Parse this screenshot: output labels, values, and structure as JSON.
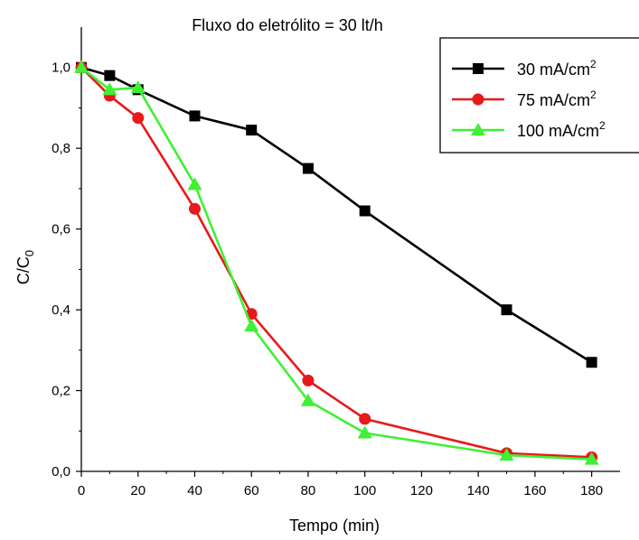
{
  "chart_data": {
    "type": "line",
    "title": "Fluxo do eletrólito = 30 lt/h",
    "xlabel": "Tempo (min)",
    "ylabel": {
      "main": "C/C",
      "sub": "0"
    },
    "xlim": [
      0,
      190
    ],
    "ylim": [
      0,
      1.1
    ],
    "xticks": [
      "0",
      "20",
      "40",
      "60",
      "80",
      "100",
      "120",
      "140",
      "160",
      "180"
    ],
    "xtick_values": [
      0,
      20,
      40,
      60,
      80,
      100,
      120,
      140,
      160,
      180
    ],
    "yticks": [
      "0,0",
      "0,2",
      "0,4",
      "0,6",
      "0,8",
      "1,0"
    ],
    "ytick_values": [
      0,
      0.2,
      0.4,
      0.6,
      0.8,
      1.0
    ],
    "grid": false,
    "legend_position": "top-right",
    "series": [
      {
        "name": "30 mA/cm",
        "name_sup": "2",
        "color": "#000000",
        "marker": "square",
        "x": [
          0,
          10,
          20,
          40,
          60,
          80,
          100,
          150,
          180
        ],
        "y": [
          1.0,
          0.98,
          0.945,
          0.88,
          0.845,
          0.75,
          0.645,
          0.4,
          0.27
        ]
      },
      {
        "name": "75 mA/cm",
        "name_sup": "2",
        "color": "#e8191a",
        "marker": "circle",
        "x": [
          0,
          10,
          20,
          40,
          60,
          80,
          100,
          150,
          180
        ],
        "y": [
          1.0,
          0.93,
          0.875,
          0.65,
          0.39,
          0.225,
          0.13,
          0.045,
          0.035
        ]
      },
      {
        "name": "100 mA/cm",
        "name_sup": "2",
        "color": "#3ff034",
        "marker": "triangle",
        "x": [
          0,
          10,
          20,
          40,
          60,
          80,
          100,
          150,
          180
        ],
        "y": [
          1.0,
          0.945,
          0.95,
          0.71,
          0.36,
          0.175,
          0.095,
          0.04,
          0.03
        ]
      }
    ]
  }
}
